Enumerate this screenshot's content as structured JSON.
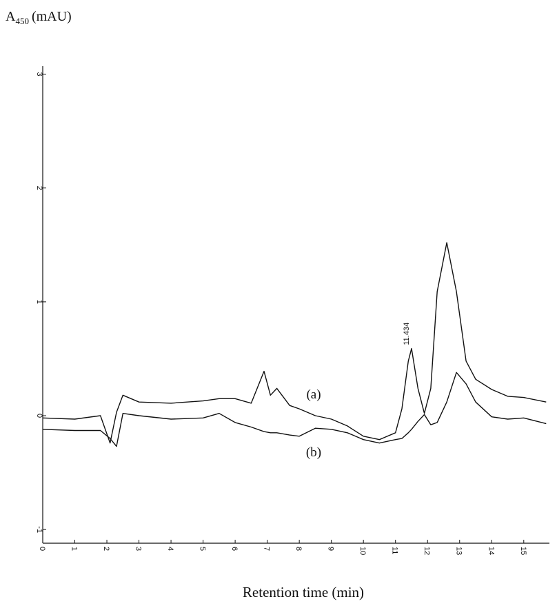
{
  "chart_data": {
    "type": "line",
    "y_label": {
      "base": "A",
      "sub": "450",
      "unit": "(mAU)"
    },
    "x_label": "Retention time (min)",
    "x": [
      0,
      1,
      1.8,
      2.1,
      2.3,
      2.5,
      3,
      4,
      5,
      5.5,
      6,
      6.5,
      6.9,
      7.1,
      7.3,
      7.7,
      8,
      8.5,
      9,
      9.5,
      10,
      10.5,
      11,
      11.2,
      11.4,
      11.5,
      11.7,
      11.9,
      12.1,
      12.3,
      12.6,
      12.9,
      13.2,
      13.5,
      14,
      14.5,
      15,
      15.7
    ],
    "series": [
      {
        "name": "(a)",
        "color": "#111111",
        "values": [
          -0.02,
          -0.03,
          0,
          -0.24,
          0.03,
          0.18,
          0.12,
          0.11,
          0.13,
          0.15,
          0.15,
          0.11,
          0.39,
          0.18,
          0.24,
          0.09,
          0.06,
          0,
          -0.03,
          -0.09,
          -0.18,
          -0.21,
          -0.15,
          0.06,
          0.48,
          0.59,
          0.24,
          0.02,
          0.24,
          1.09,
          1.52,
          1.09,
          0.48,
          0.32,
          0.23,
          0.17,
          0.16,
          0.12
        ]
      },
      {
        "name": "(b)",
        "color": "#111111",
        "values": [
          -0.12,
          -0.13,
          -0.13,
          -0.2,
          -0.27,
          0.02,
          0,
          -0.03,
          -0.02,
          0.02,
          -0.06,
          -0.1,
          -0.14,
          -0.15,
          -0.15,
          -0.17,
          -0.18,
          -0.11,
          -0.12,
          -0.15,
          -0.21,
          -0.24,
          -0.21,
          -0.2,
          -0.15,
          -0.12,
          -0.05,
          0.01,
          -0.08,
          -0.06,
          0.12,
          0.38,
          0.28,
          0.12,
          -0.01,
          -0.03,
          -0.02,
          -0.07
        ]
      }
    ],
    "annotations": [
      {
        "text": "11.434",
        "x": 11.5,
        "y": 0.62
      }
    ],
    "xlim": [
      0,
      15.8
    ],
    "ylim": [
      -1.12,
      3.07
    ],
    "xticks": [
      0,
      1,
      2,
      3,
      4,
      5,
      6,
      7,
      8,
      9,
      10,
      11,
      12,
      13,
      14,
      15
    ],
    "yticks": [
      -1,
      0,
      1,
      2,
      3
    ]
  }
}
